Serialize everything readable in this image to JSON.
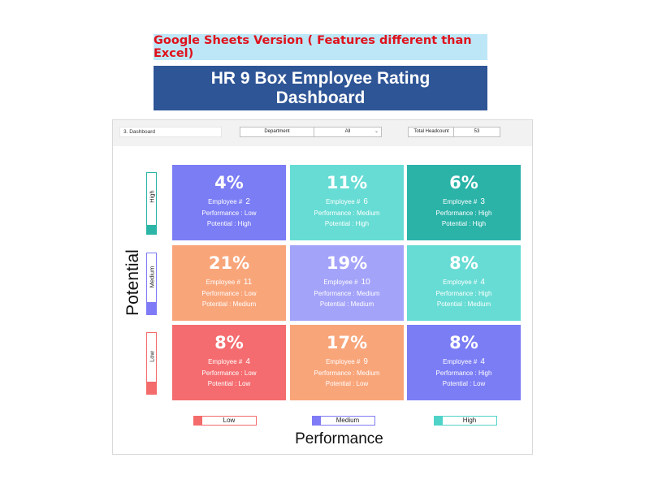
{
  "banner": {
    "note": "Google Sheets Version ( Features different than Excel)",
    "title_line1": "HR 9 Box Employee Rating",
    "title_line2": "Dashboard"
  },
  "toolbar": {
    "sheet_name": "3. Dashboard",
    "department_label": "Department",
    "department_value": "All",
    "headcount_label": "Total Headcount",
    "headcount_value": "53"
  },
  "axes": {
    "y_title": "Potential",
    "x_title": "Performance"
  },
  "potential_bars": [
    {
      "label": "High",
      "color": "#2ab5a6",
      "level": 0.15
    },
    {
      "label": "Medium",
      "color": "#7f7af5",
      "level": 0.2
    },
    {
      "label": "Low",
      "color": "#f36b6b",
      "level": 0.2
    }
  ],
  "grid": {
    "labels": {
      "employee": "Employee #",
      "performance": "Performance :",
      "potential": "Potential :"
    },
    "rows": [
      [
        {
          "pct": "4%",
          "count": "2",
          "performance": "Low",
          "potential": "High",
          "color": "#7b7df5"
        },
        {
          "pct": "11%",
          "count": "6",
          "performance": "Medium",
          "potential": "High",
          "color": "#67dcd4"
        },
        {
          "pct": "6%",
          "count": "3",
          "performance": "High",
          "potential": "High",
          "color": "#2bb3a8"
        }
      ],
      [
        {
          "pct": "21%",
          "count": "11",
          "performance": "Low",
          "potential": "Medium",
          "color": "#f9a57a"
        },
        {
          "pct": "19%",
          "count": "10",
          "performance": "Medium",
          "potential": "Medium",
          "color": "#a4a3fa"
        },
        {
          "pct": "8%",
          "count": "4",
          "performance": "High",
          "potential": "Medium",
          "color": "#67dcd4"
        }
      ],
      [
        {
          "pct": "8%",
          "count": "4",
          "performance": "Low",
          "potential": "Low",
          "color": "#f46c6f"
        },
        {
          "pct": "17%",
          "count": "9",
          "performance": "Medium",
          "potential": "Low",
          "color": "#f9a57a"
        },
        {
          "pct": "8%",
          "count": "4",
          "performance": "High",
          "potential": "Low",
          "color": "#7b7df5"
        }
      ]
    ]
  },
  "performance_legend": [
    {
      "label": "Low",
      "color": "#f36b6b"
    },
    {
      "label": "Medium",
      "color": "#7f7af5"
    },
    {
      "label": "High",
      "color": "#4fd3c8"
    }
  ]
}
